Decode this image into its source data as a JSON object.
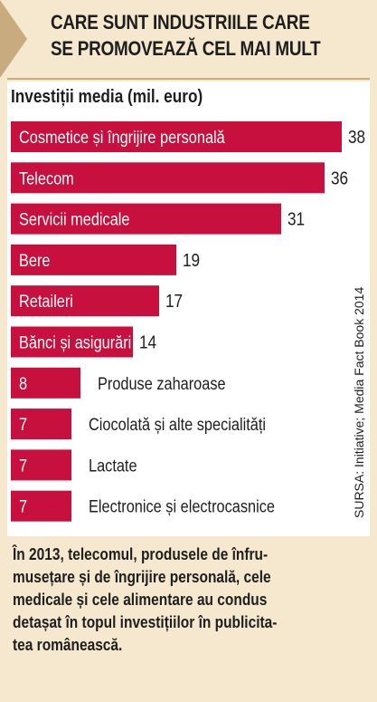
{
  "header": {
    "title_lines": [
      "CARE SUNT INDUSTRIILE CARE",
      "SE PROMOVEAZĂ CEL MAI MULT"
    ]
  },
  "chart_data": {
    "type": "bar",
    "orientation": "horizontal",
    "title": "CARE SUNT INDUSTRIILE CARE SE PROMOVEAZĂ CEL MAI MULT",
    "subtitle": "Investiții media (mil. euro)",
    "categories": [
      "Cosmetice și îngrijire personală",
      "Telecom",
      "Servicii medicale",
      "Bere",
      "Retaileri",
      "Bănci și asigurări",
      "Produse zaharoase",
      "Ciocolată și alte specialități",
      "Lactate",
      "Electronice și electrocasnice"
    ],
    "values": [
      38,
      36,
      31,
      19,
      17,
      14,
      8,
      7,
      7,
      7
    ],
    "bar_color": "#c8103e",
    "xlim": [
      0,
      38
    ]
  },
  "source": "SURSA: Initiative; Media Fact Book 2014",
  "note_lines": [
    "În 2013, telecomul, produsele de înfru-",
    "musețare și de îngrijire personală, cele",
    "medicale și cele alimentare au condus",
    "detașat în topul investițiilor în publicita-",
    "tea românească."
  ]
}
